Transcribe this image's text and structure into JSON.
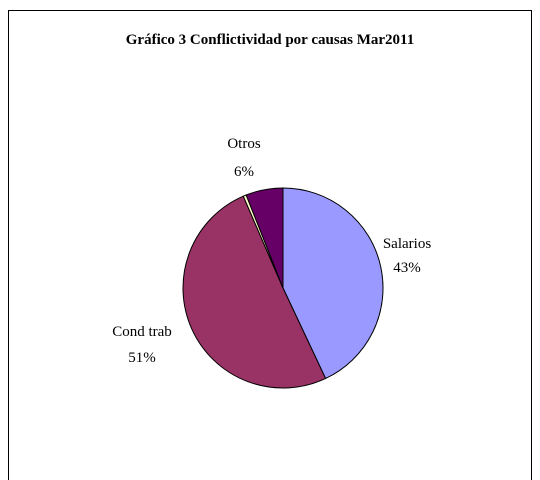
{
  "chart_data": {
    "type": "pie",
    "title": "Gráfico 3 Conflictividad por causas Mar2011",
    "slices": [
      {
        "name": "Salarios",
        "value": 43,
        "label": "43%",
        "color": "#9999ff"
      },
      {
        "name": "Cond trab",
        "value": 50.5,
        "label": "51%",
        "color": "#993366"
      },
      {
        "name": "",
        "value": 0.5,
        "label": "",
        "color": "#ffffcc"
      },
      {
        "name": "Otros",
        "value": 6,
        "label": "6%",
        "color": "#660066"
      }
    ],
    "legend": "none"
  }
}
